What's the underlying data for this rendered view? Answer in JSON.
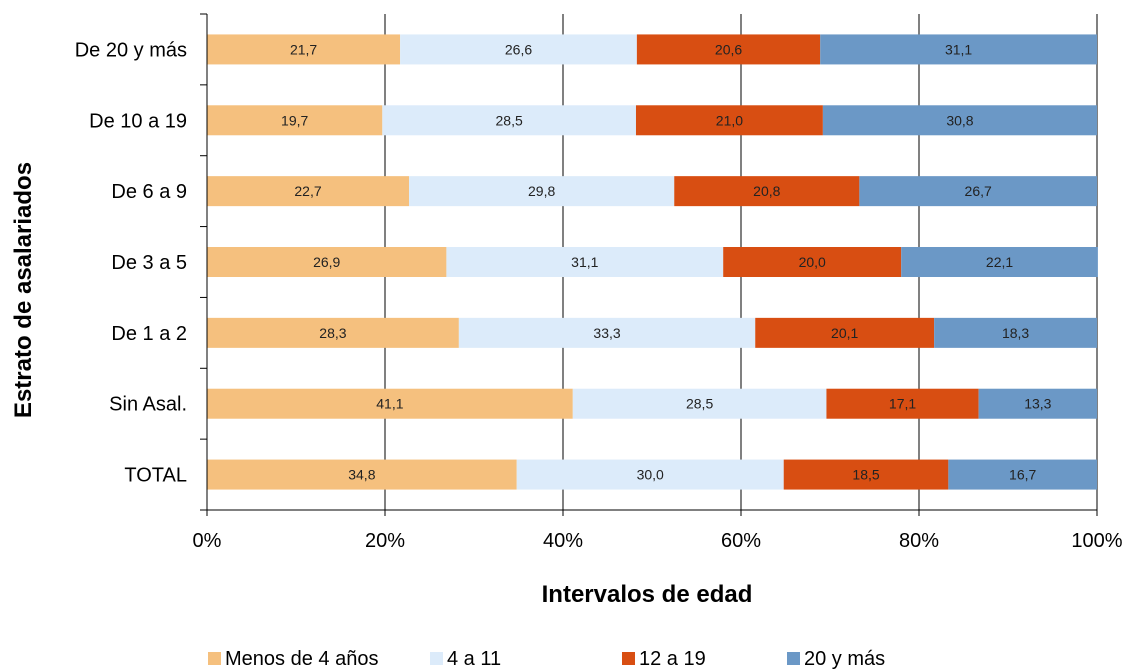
{
  "chart_data": {
    "type": "bar",
    "orientation": "horizontal",
    "stacked": "percent",
    "categories": [
      "De 20 y más",
      "De 10 a 19",
      "De 6 a 9",
      "De 3 a 5",
      "De 1 a 2",
      "Sin Asal.",
      "TOTAL"
    ],
    "series": [
      {
        "name": "Menos de 4 años",
        "color": "#F5C07E",
        "values": [
          21.7,
          19.7,
          22.7,
          26.9,
          28.3,
          41.1,
          34.8
        ],
        "labels": [
          "21,7",
          "19,7",
          "22,7",
          "26,9",
          "28,3",
          "41,1",
          "34,8"
        ]
      },
      {
        "name": "4 a 11",
        "color": "#DCEBFA",
        "values": [
          26.6,
          28.5,
          29.8,
          31.1,
          33.3,
          28.5,
          30.0
        ],
        "labels": [
          "26,6",
          "28,5",
          "29,8",
          "31,1",
          "33,3",
          "28,5",
          "30,0"
        ]
      },
      {
        "name": "12 a 19",
        "color": "#D84E12",
        "values": [
          20.6,
          21.0,
          20.8,
          20.0,
          20.1,
          17.1,
          18.5
        ],
        "labels": [
          "20,6",
          "21,0",
          "20,8",
          "20,0",
          "20,1",
          "17,1",
          "18,5"
        ]
      },
      {
        "name": "20 y más",
        "color": "#6B98C6",
        "values": [
          31.1,
          30.8,
          26.7,
          22.1,
          18.3,
          13.3,
          16.7
        ],
        "labels": [
          "31,1",
          "30,8",
          "26,7",
          "22,1",
          "18,3",
          "13,3",
          "16,7"
        ]
      }
    ],
    "xlim": [
      0,
      100
    ],
    "xticks": [
      "0%",
      "20%",
      "40%",
      "60%",
      "80%",
      "100%"
    ],
    "xlabel": "Intervalos de edad",
    "ylabel": "Estrato de asalariados",
    "grid": "vertical",
    "legend": "bottom"
  }
}
